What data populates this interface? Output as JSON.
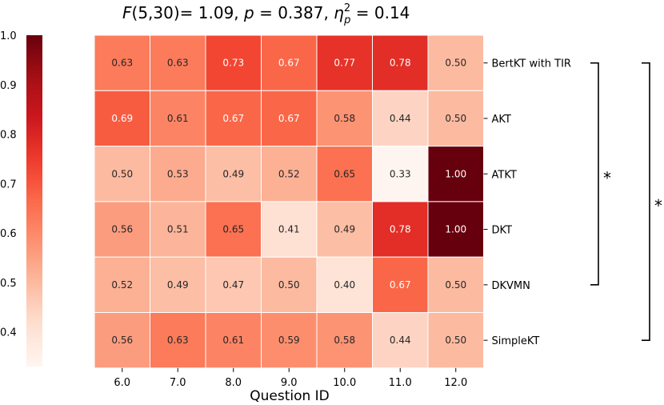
{
  "chart_data": {
    "type": "heatmap",
    "title_parts": {
      "f_symbol": "F",
      "f_args": "(5,30)= 1.09, ",
      "p_symbol": "p",
      "p_value": " = 0.387, ",
      "eta_symbol": "η",
      "eta_sup": "2",
      "eta_sub": "p",
      "eta_value": " = 0.14"
    },
    "xlabel": "Question ID",
    "x_categories": [
      "6.0",
      "7.0",
      "8.0",
      "9.0",
      "10.0",
      "11.0",
      "12.0"
    ],
    "y_categories": [
      "BertKT with TIR",
      "AKT",
      "ATKT",
      "DKT",
      "DKVMN",
      "SimpleKT"
    ],
    "values": [
      [
        0.63,
        0.63,
        0.73,
        0.67,
        0.77,
        0.78,
        0.5
      ],
      [
        0.69,
        0.61,
        0.67,
        0.67,
        0.58,
        0.44,
        0.5
      ],
      [
        0.5,
        0.53,
        0.49,
        0.52,
        0.65,
        0.33,
        1.0
      ],
      [
        0.56,
        0.51,
        0.65,
        0.41,
        0.49,
        0.78,
        1.0
      ],
      [
        0.52,
        0.49,
        0.47,
        0.5,
        0.4,
        0.67,
        0.5
      ],
      [
        0.56,
        0.63,
        0.61,
        0.59,
        0.58,
        0.44,
        0.5
      ]
    ],
    "cell_labels": [
      [
        "0.63",
        "0.63",
        "0.73",
        "0.67",
        "0.77",
        "0.78",
        "0.50"
      ],
      [
        "0.69",
        "0.61",
        "0.67",
        "0.67",
        "0.58",
        "0.44",
        "0.50"
      ],
      [
        "0.50",
        "0.53",
        "0.49",
        "0.52",
        "0.65",
        "0.33",
        "1.00"
      ],
      [
        "0.56",
        "0.51",
        "0.65",
        "0.41",
        "0.49",
        "0.78",
        "1.00"
      ],
      [
        "0.52",
        "0.49",
        "0.47",
        "0.50",
        "0.40",
        "0.67",
        "0.50"
      ],
      [
        "0.56",
        "0.63",
        "0.61",
        "0.59",
        "0.58",
        "0.44",
        "0.50"
      ]
    ],
    "colorbar": {
      "range": [
        0.33,
        1.0
      ],
      "ticks": [
        0.4,
        0.5,
        0.6,
        0.7,
        0.8,
        0.9,
        1.0
      ],
      "tick_labels": [
        "0.4",
        "0.5",
        "0.6",
        "0.7",
        "0.8",
        "0.9",
        "1.0"
      ],
      "colormap": "Reds"
    },
    "significance_brackets": [
      {
        "from": "BertKT with TIR",
        "to": "DKVMN",
        "label": "*"
      },
      {
        "from": "BertKT with TIR",
        "to": "SimpleKT",
        "label": "*"
      }
    ]
  }
}
